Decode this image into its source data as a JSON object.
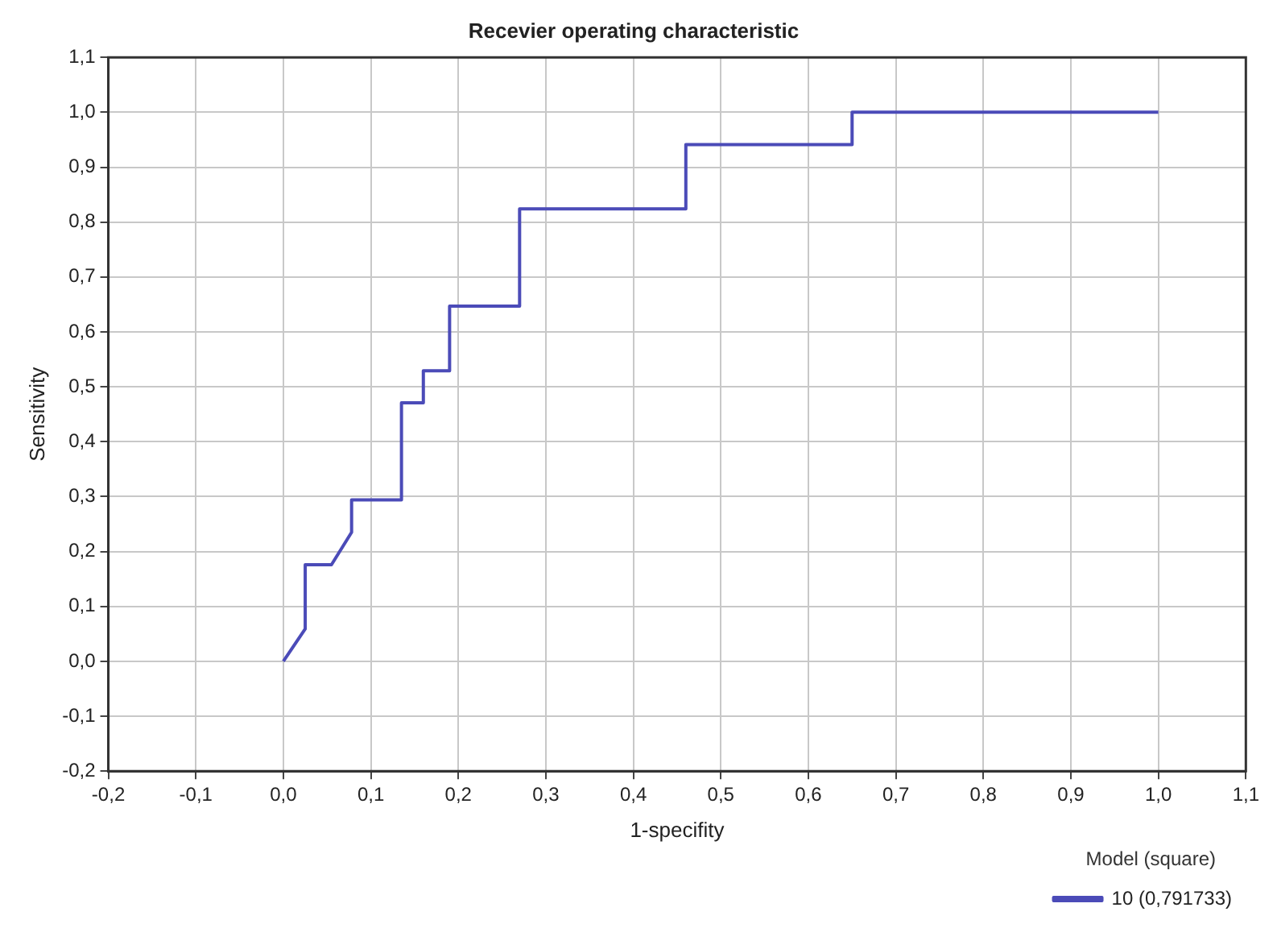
{
  "chart_data": {
    "type": "line",
    "title": "Recevier operating characteristic",
    "xlabel": "1-specifity",
    "ylabel": "Sensitivity",
    "legend_title": "Model (square)",
    "legend": "bottom right",
    "grid": true,
    "marker": "none",
    "line_style": "solid",
    "xlim": [
      -0.2,
      1.1
    ],
    "ylim": [
      -0.2,
      1.1
    ],
    "xticks": [
      {
        "value": -0.2,
        "label": "-0,2"
      },
      {
        "value": -0.1,
        "label": "-0,1"
      },
      {
        "value": 0,
        "label": "0,0"
      },
      {
        "value": 0.1,
        "label": "0,1"
      },
      {
        "value": 0.2,
        "label": "0,2"
      },
      {
        "value": 0.3,
        "label": "0,3"
      },
      {
        "value": 0.4,
        "label": "0,4"
      },
      {
        "value": 0.5,
        "label": "0,5"
      },
      {
        "value": 0.6,
        "label": "0,6"
      },
      {
        "value": 0.7,
        "label": "0,7"
      },
      {
        "value": 0.8,
        "label": "0,8"
      },
      {
        "value": 0.9,
        "label": "0,9"
      },
      {
        "value": 1,
        "label": "1,0"
      },
      {
        "value": 1.1,
        "label": "1,1"
      }
    ],
    "yticks": [
      {
        "value": -0.2,
        "label": "-0,2"
      },
      {
        "value": -0.1,
        "label": "-0,1"
      },
      {
        "value": 0,
        "label": "0,0"
      },
      {
        "value": 0.1,
        "label": "0,1"
      },
      {
        "value": 0.2,
        "label": "0,2"
      },
      {
        "value": 0.3,
        "label": "0,3"
      },
      {
        "value": 0.4,
        "label": "0,4"
      },
      {
        "value": 0.5,
        "label": "0,5"
      },
      {
        "value": 0.6,
        "label": "0,6"
      },
      {
        "value": 0.7,
        "label": "0,7"
      },
      {
        "value": 0.8,
        "label": "0,8"
      },
      {
        "value": 0.9,
        "label": "0,9"
      },
      {
        "value": 1,
        "label": "1,0"
      },
      {
        "value": 1.1,
        "label": "1,1"
      }
    ],
    "series": [
      {
        "name": "10 (0,791733)",
        "color": "#4b4bb8",
        "x": [
          0,
          0.025,
          0.025,
          0.055,
          0.078,
          0.078,
          0.135,
          0.135,
          0.16,
          0.16,
          0.19,
          0.19,
          0.27,
          0.27,
          0.46,
          0.46,
          0.65,
          0.65,
          1.0
        ],
        "values": [
          0,
          0.059,
          0.176,
          0.176,
          0.235,
          0.294,
          0.294,
          0.471,
          0.471,
          0.529,
          0.529,
          0.647,
          0.647,
          0.824,
          0.824,
          0.941,
          0.941,
          1.0,
          1.0
        ]
      }
    ]
  }
}
